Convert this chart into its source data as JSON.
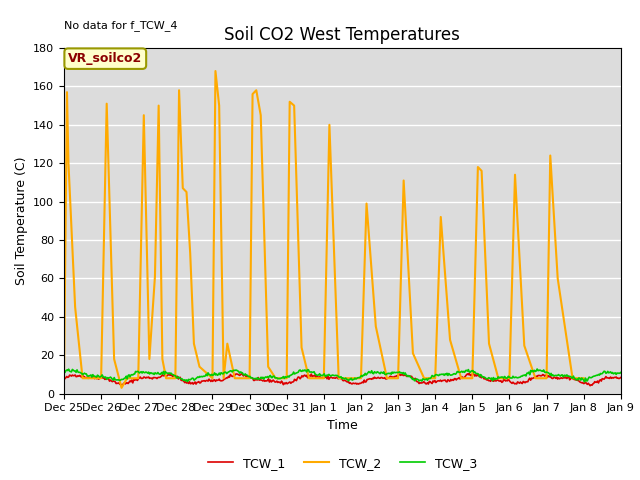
{
  "title": "Soil CO2 West Temperatures",
  "ylabel": "Soil Temperature (C)",
  "xlabel": "Time",
  "no_data_text": "No data for f_TCW_4",
  "annotation_box_text": "VR_soilco2",
  "ylim": [
    0,
    180
  ],
  "plot_bg_color": "#dcdcdc",
  "fig_bg_color": "#ffffff",
  "legend_entries": [
    "TCW_1",
    "TCW_2",
    "TCW_3"
  ],
  "line_colors": {
    "TCW_1": "#dd0000",
    "TCW_2": "#ffaa00",
    "TCW_3": "#00cc00"
  },
  "line_widths": {
    "TCW_1": 1.2,
    "TCW_2": 1.5,
    "TCW_3": 1.2
  },
  "tcw2_spikes": [
    [
      0.0,
      8
    ],
    [
      0.08,
      157
    ],
    [
      0.12,
      120
    ],
    [
      0.3,
      45
    ],
    [
      0.5,
      8
    ],
    [
      0.5,
      8
    ],
    [
      0.7,
      8
    ],
    [
      1.0,
      8
    ],
    [
      1.0,
      8
    ],
    [
      1.15,
      151
    ],
    [
      1.35,
      18
    ],
    [
      1.55,
      3
    ],
    [
      1.7,
      8
    ],
    [
      2.0,
      8
    ],
    [
      2.0,
      8
    ],
    [
      2.15,
      145
    ],
    [
      2.3,
      18
    ],
    [
      2.45,
      61
    ],
    [
      2.55,
      150
    ],
    [
      2.65,
      18
    ],
    [
      2.75,
      8
    ],
    [
      3.0,
      8
    ],
    [
      3.0,
      8
    ],
    [
      3.1,
      158
    ],
    [
      3.2,
      107
    ],
    [
      3.3,
      105
    ],
    [
      3.4,
      73
    ],
    [
      3.5,
      26
    ],
    [
      3.65,
      14
    ],
    [
      4.0,
      8
    ],
    [
      4.0,
      8
    ],
    [
      4.08,
      168
    ],
    [
      4.18,
      150
    ],
    [
      4.3,
      8
    ],
    [
      4.4,
      26
    ],
    [
      4.6,
      8
    ],
    [
      5.0,
      8
    ],
    [
      5.0,
      8
    ],
    [
      5.08,
      156
    ],
    [
      5.18,
      158
    ],
    [
      5.3,
      145
    ],
    [
      5.5,
      14
    ],
    [
      5.7,
      8
    ],
    [
      6.0,
      8
    ],
    [
      6.0,
      8
    ],
    [
      6.08,
      152
    ],
    [
      6.2,
      150
    ],
    [
      6.4,
      24
    ],
    [
      6.6,
      8
    ],
    [
      7.0,
      8
    ],
    [
      7.0,
      8
    ],
    [
      7.15,
      140
    ],
    [
      7.4,
      8
    ],
    [
      8.0,
      8
    ],
    [
      8.0,
      8
    ],
    [
      8.15,
      99
    ],
    [
      8.4,
      35
    ],
    [
      8.7,
      8
    ],
    [
      9.0,
      8
    ],
    [
      9.0,
      8
    ],
    [
      9.15,
      111
    ],
    [
      9.4,
      21
    ],
    [
      9.7,
      8
    ],
    [
      10.0,
      8
    ],
    [
      10.0,
      8
    ],
    [
      10.15,
      92
    ],
    [
      10.4,
      28
    ],
    [
      10.7,
      8
    ],
    [
      11.0,
      8
    ],
    [
      11.0,
      8
    ],
    [
      11.15,
      118
    ],
    [
      11.25,
      116
    ],
    [
      11.45,
      26
    ],
    [
      11.7,
      8
    ],
    [
      12.0,
      8
    ],
    [
      12.0,
      8
    ],
    [
      12.15,
      114
    ],
    [
      12.4,
      25
    ],
    [
      12.7,
      8
    ],
    [
      13.0,
      8
    ],
    [
      13.0,
      8
    ],
    [
      13.1,
      124
    ],
    [
      13.3,
      60
    ],
    [
      13.7,
      8
    ],
    [
      14.0,
      8
    ]
  ],
  "x_tick_labels": [
    "Dec 25",
    "Dec 26",
    "Dec 27",
    "Dec 28",
    "Dec 29",
    "Dec 30",
    "Dec 31",
    "Jan 1",
    "Jan 2",
    "Jan 3",
    "Jan 4",
    "Jan 5",
    "Jan 6",
    "Jan 7",
    "Jan 8",
    "Jan 9"
  ],
  "x_tick_positions": [
    0,
    1,
    2,
    3,
    4,
    5,
    6,
    7,
    8,
    9,
    10,
    11,
    12,
    13,
    14,
    15
  ],
  "yticks": [
    0,
    20,
    40,
    60,
    80,
    100,
    120,
    140,
    160,
    180
  ],
  "title_fontsize": 12,
  "axis_label_fontsize": 9,
  "tick_fontsize": 8,
  "legend_fontsize": 9,
  "no_data_fontsize": 8,
  "annot_fontsize": 9
}
